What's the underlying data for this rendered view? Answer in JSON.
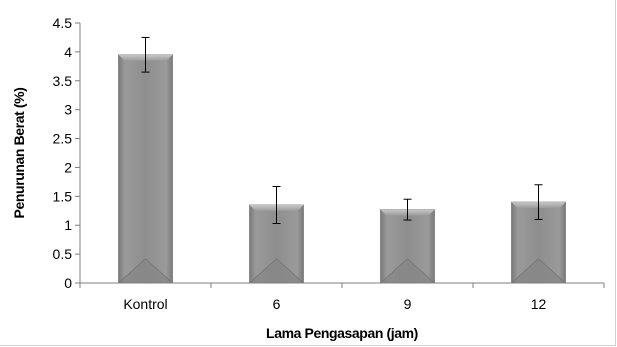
{
  "chart_data": {
    "type": "bar",
    "categories": [
      "Kontrol",
      "6",
      "9",
      "12"
    ],
    "values": [
      3.95,
      1.35,
      1.27,
      1.4
    ],
    "errors": [
      0.3,
      0.32,
      0.18,
      0.3
    ],
    "title": "",
    "xlabel": "Lama Pengasapan (jam)",
    "ylabel": "Penurunan Berat (%)",
    "ylim": [
      0,
      4.5
    ],
    "yticks": [
      "0",
      "0.5",
      "1",
      "1.5",
      "2",
      "2.5",
      "3",
      "3.5",
      "4",
      "4.5"
    ],
    "grid": false,
    "legend": "none",
    "bar_color": "#8c8c8c",
    "error_bar_color": "#000000"
  }
}
